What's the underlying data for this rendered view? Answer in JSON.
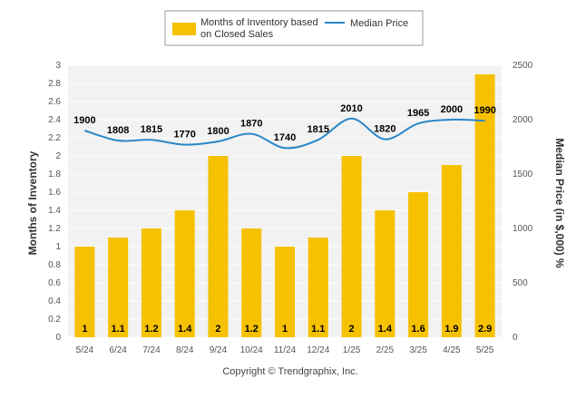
{
  "chart_data": {
    "type": "bar",
    "categories": [
      "5/24",
      "6/24",
      "7/24",
      "8/24",
      "9/24",
      "10/24",
      "11/24",
      "12/24",
      "1/25",
      "2/25",
      "3/25",
      "4/25",
      "5/25"
    ],
    "series": [
      {
        "name": "Months of Inventory based on Closed Sales",
        "type": "bar",
        "axis": "left",
        "values": [
          1,
          1.1,
          1.2,
          1.4,
          2,
          1.2,
          1,
          1.1,
          2,
          1.4,
          1.6,
          1.9,
          2.9
        ],
        "labels": [
          "1",
          "1.1",
          "1.2",
          "1.4",
          "2",
          "1.2",
          "1",
          "1.1",
          "2",
          "1.4",
          "1.6",
          "1.9",
          "2.9"
        ],
        "color": "#F6C100"
      },
      {
        "name": "Median Price",
        "type": "line",
        "axis": "right",
        "values": [
          1900,
          1808,
          1815,
          1770,
          1800,
          1870,
          1740,
          1815,
          2010,
          1820,
          1965,
          2000,
          1990
        ],
        "labels": [
          "1900",
          "1808",
          "1815",
          "1770",
          "1800",
          "1870",
          "1740",
          "1815",
          "2010",
          "1820",
          "1965",
          "2000",
          "1990"
        ],
        "color": "#2A86C8"
      }
    ],
    "legend": {
      "bar_line1": "Months of Inventory based",
      "bar_line2": "on Closed Sales",
      "line": "Median Price",
      "position": "top"
    },
    "ylabel": "Months of Inventory",
    "y2label": "Median Price (in $,000) %",
    "ylim": [
      0,
      3
    ],
    "y2lim": [
      0,
      2500
    ],
    "yticks": [
      "0",
      "0.2",
      "0.4",
      "0.6",
      "0.8",
      "1",
      "1.2",
      "1.4",
      "1.6",
      "1.8",
      "2",
      "2.2",
      "2.4",
      "2.6",
      "2.8",
      "3"
    ],
    "y2ticks": [
      "0",
      "500",
      "1000",
      "1500",
      "2000",
      "2500"
    ],
    "grid": true,
    "background": "#F2F2F2",
    "footer": "Copyright © Trendgraphix, Inc."
  }
}
